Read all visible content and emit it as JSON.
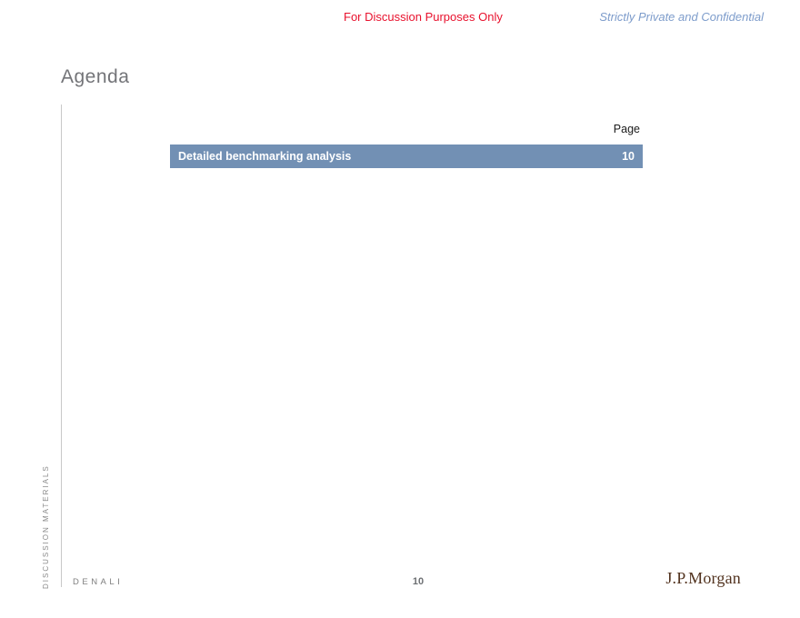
{
  "header": {
    "discussion_notice": "For Discussion Purposes Only",
    "confidential_notice": "Strictly Private and Confidential"
  },
  "slide": {
    "title": "Agenda",
    "page_column_label": "Page",
    "agenda_items": [
      {
        "label": "Detailed benchmarking analysis",
        "page": "10"
      }
    ]
  },
  "footer": {
    "sidebar_label": "DISCUSSION MATERIALS",
    "project_name": "DENALI",
    "page_number": "10",
    "logo": "J.P.Morgan"
  },
  "colors": {
    "accent_bar": "#7290b4",
    "notice_red": "#e8112d",
    "confidential_blue": "#7d9ccb",
    "logo_brown": "#52331f",
    "divider_gray": "#c8c8c8"
  }
}
